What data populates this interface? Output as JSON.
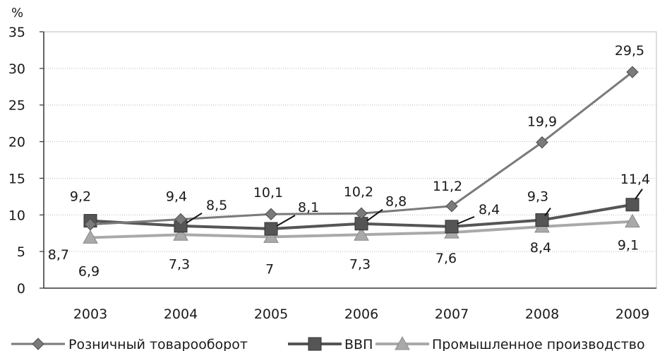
{
  "chart_data": {
    "type": "line",
    "title": "",
    "ylabel": "%",
    "xlabel": "",
    "categories": [
      "2003",
      "2004",
      "2005",
      "2006",
      "2007",
      "2008",
      "2009"
    ],
    "ylim": [
      0,
      35
    ],
    "yticks": [
      0,
      5,
      10,
      15,
      20,
      25,
      30,
      35
    ],
    "grid": true,
    "legend_position": "bottom",
    "series": [
      {
        "name": "Розничный товарооборот",
        "values": [
          8.7,
          9.4,
          10.1,
          10.2,
          11.2,
          19.9,
          29.5
        ],
        "labels": [
          "8,7",
          "9,4",
          "10,1",
          "10,2",
          "11,2",
          "19,9",
          "29,5"
        ],
        "marker": "diamond",
        "color": "#7a7a7a"
      },
      {
        "name": "ВВП",
        "values": [
          9.2,
          8.5,
          8.1,
          8.8,
          8.4,
          9.3,
          11.4
        ],
        "labels": [
          "9,2",
          "8,5",
          "8,1",
          "8,8",
          "8,4",
          "9,3",
          "11,4"
        ],
        "marker": "square",
        "color": "#555555"
      },
      {
        "name": "Промышленное производство",
        "values": [
          6.9,
          7.3,
          7.0,
          7.3,
          7.6,
          8.4,
          9.1
        ],
        "labels": [
          "6,9",
          "7,3",
          "7",
          "7,3",
          "7,6",
          "8,4",
          "9,1"
        ],
        "marker": "triangle",
        "color": "#a9a9a9"
      }
    ]
  }
}
